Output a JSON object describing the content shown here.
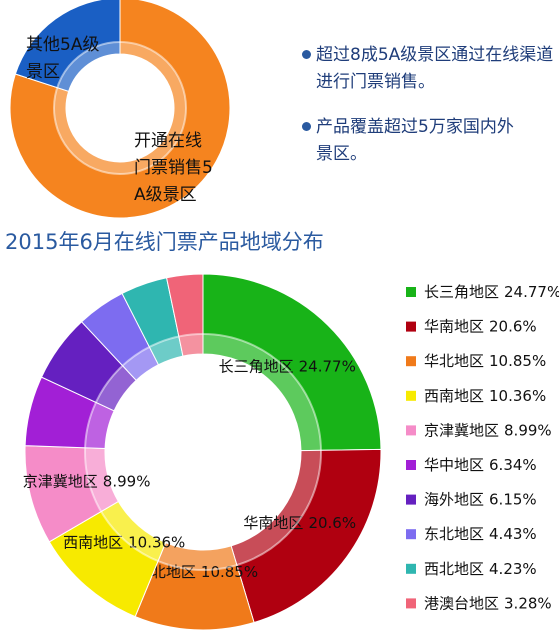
{
  "notes": [
    "超过8成5A级景区通过在线渠道进行门票销售。",
    "产品覆盖超过5万家国内外景区。"
  ],
  "chart_data": [
    {
      "type": "donut",
      "categories": [
        "开通在线门票销售5A级景区",
        "其他5A级景区"
      ],
      "values": [
        80,
        20
      ],
      "colors": [
        "#f5841f",
        "#1a5fc4"
      ]
    },
    {
      "type": "donut",
      "title": "2015年6月在线门票产品地域分布",
      "categories": [
        "长三角地区",
        "华南地区",
        "华北地区",
        "西南地区",
        "京津冀地区",
        "华中地区",
        "海外地区",
        "东北地区",
        "西北地区",
        "港澳台地区"
      ],
      "values": [
        24.77,
        20.6,
        10.85,
        10.36,
        8.99,
        6.34,
        6.15,
        4.43,
        4.23,
        3.28
      ],
      "value_labels": [
        "24.77%",
        "20.6%",
        "10.85%",
        "10.36%",
        "8.99%",
        "6.34%",
        "6.15%",
        "4.43%",
        "4.23%",
        "3.28%"
      ],
      "colors": [
        "#18b318",
        "#b00010",
        "#f07a1a",
        "#f7ea00",
        "#f58cc8",
        "#a21fd6",
        "#6520c0",
        "#7d6cf0",
        "#2fb6b0",
        "#f06478"
      ],
      "legend": "right"
    }
  ]
}
